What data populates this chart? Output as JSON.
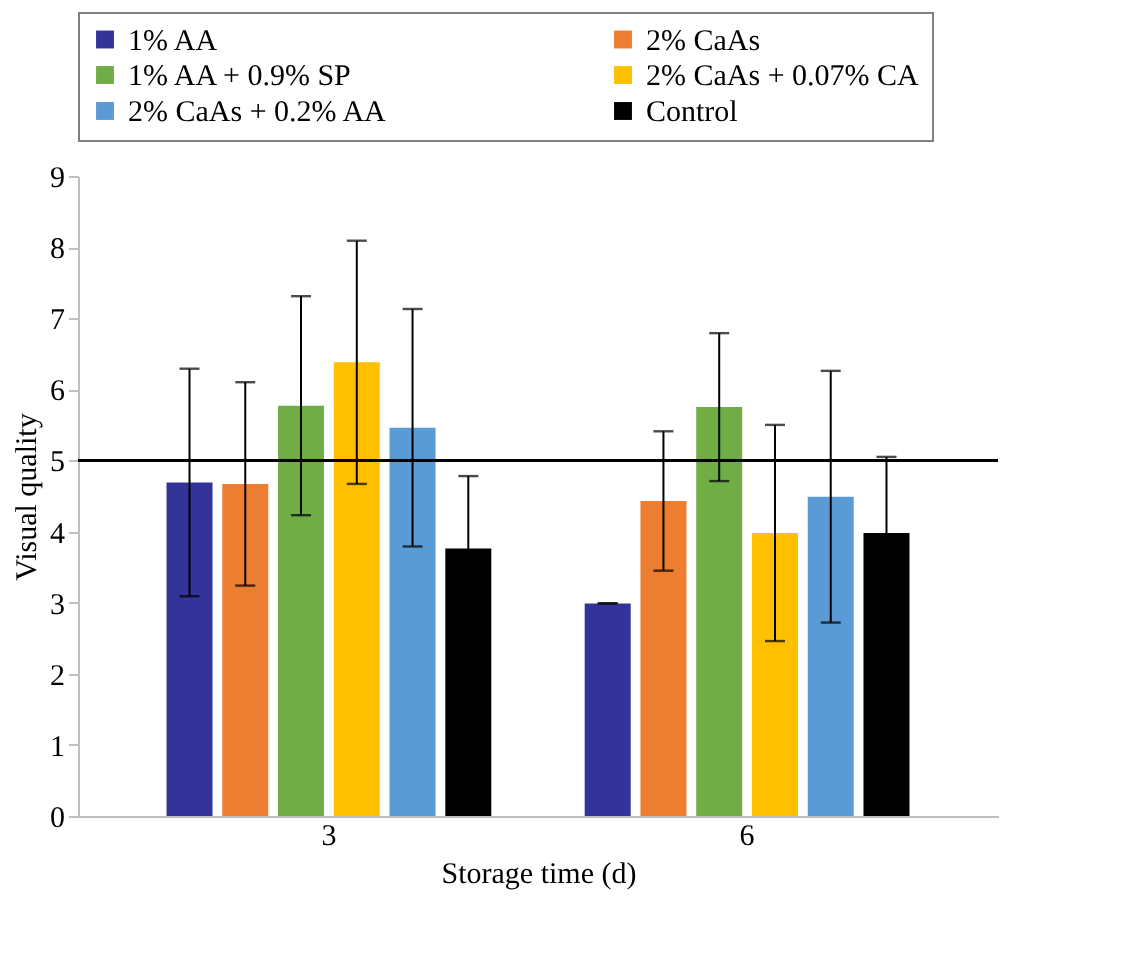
{
  "chart_data": {
    "type": "bar",
    "xlabel": "Storage time (d)",
    "ylabel": "Visual quality",
    "categories": [
      "3",
      "6"
    ],
    "series": [
      {
        "name": "1% AA",
        "color": "#333399",
        "values": [
          4.69,
          2.99
        ],
        "errors": [
          1.6,
          0
        ]
      },
      {
        "name": "2% CaAs",
        "color": "#ed7d31",
        "values": [
          4.67,
          4.43
        ],
        "errors": [
          1.43,
          0.98
        ]
      },
      {
        "name": "1% AA + 0.9% SP",
        "color": "#70ad47",
        "values": [
          5.77,
          5.75
        ],
        "errors": [
          1.54,
          1.04
        ]
      },
      {
        "name": "2% CaAs + 0.07% CA",
        "color": "#ffc000",
        "values": [
          6.38,
          3.98
        ],
        "errors": [
          1.71,
          1.52
        ]
      },
      {
        "name": "2% CaAs + 0.2% AA",
        "color": "#5b9bd5",
        "values": [
          5.46,
          4.49
        ],
        "errors": [
          1.67,
          1.77
        ]
      },
      {
        "name": "Control",
        "color": "#000000",
        "values": [
          3.76,
          3.98
        ],
        "errors": [
          1.02,
          1.07
        ]
      }
    ],
    "ylim": [
      0,
      9
    ],
    "yticks": [
      0,
      1,
      2,
      3,
      4,
      5,
      6,
      7,
      8,
      9
    ],
    "ref_lines": [
      {
        "axis": "y",
        "value": 5,
        "label": null,
        "color": "#000000"
      }
    ],
    "grid": false,
    "legend": "top"
  }
}
